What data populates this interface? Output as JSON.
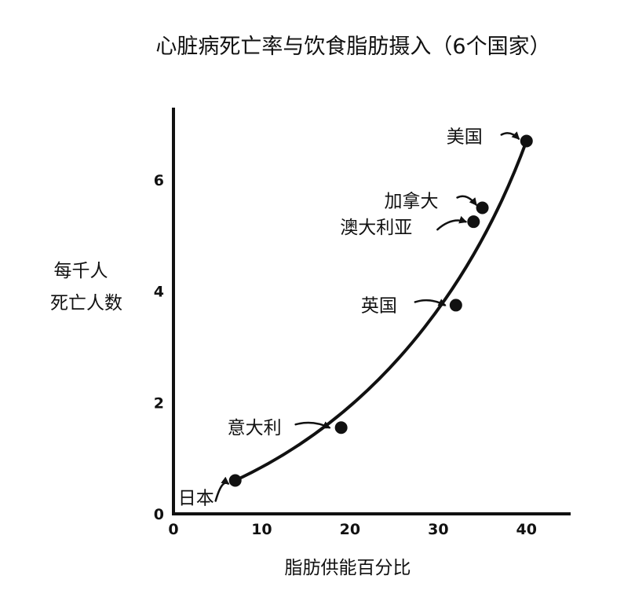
{
  "chart_data": {
    "type": "scatter",
    "title": "心脏病死亡率与饮食脂肪摄入（6个国家）",
    "xlabel": "脂肪供能百分比",
    "ylabel_lines": [
      "每千人",
      "死亡人数"
    ],
    "xlim": [
      0,
      45
    ],
    "ylim": [
      0,
      7.3
    ],
    "xticks": [
      0,
      10,
      20,
      30,
      40
    ],
    "yticks": [
      0,
      2,
      4,
      6
    ],
    "grid": false,
    "legend": false,
    "points": [
      {
        "label": "日本",
        "x": 7,
        "y": 0.6
      },
      {
        "label": "意大利",
        "x": 19,
        "y": 1.55
      },
      {
        "label": "英国",
        "x": 32,
        "y": 3.75
      },
      {
        "label": "澳大利亚",
        "x": 34,
        "y": 5.25
      },
      {
        "label": "加拿大",
        "x": 35,
        "y": 5.5
      },
      {
        "label": "美国",
        "x": 40,
        "y": 6.7
      }
    ]
  }
}
